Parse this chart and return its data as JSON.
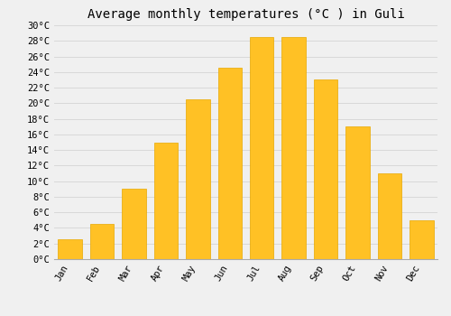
{
  "months": [
    "Jan",
    "Feb",
    "Mar",
    "Apr",
    "May",
    "Jun",
    "Jul",
    "Aug",
    "Sep",
    "Oct",
    "Nov",
    "Dec"
  ],
  "values": [
    2.5,
    4.5,
    9.0,
    15.0,
    20.5,
    24.5,
    28.5,
    28.5,
    23.0,
    17.0,
    11.0,
    5.0
  ],
  "bar_color": "#FFC125",
  "bar_edge_color": "#E8A800",
  "title": "Average monthly temperatures (°C ) in Guli",
  "ylim": [
    0,
    30
  ],
  "ytick_step": 2,
  "background_color": "#f0f0f0",
  "grid_color": "#d8d8d8",
  "title_fontsize": 10,
  "tick_fontsize": 7.5,
  "font_family": "monospace",
  "bar_width": 0.75
}
